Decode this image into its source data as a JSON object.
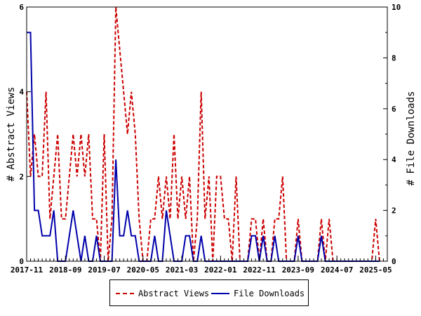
{
  "chart_data": {
    "type": "line",
    "ylabel_left": "# Abstract Views",
    "ylabel_right": "# File Downloads",
    "ylim_left": [
      0,
      6
    ],
    "ylim_right": [
      0,
      10
    ],
    "yticks_left": [
      "0",
      "2",
      "4",
      "6"
    ],
    "yticks_right": [
      "0",
      "2",
      "4",
      "6",
      "8",
      "10"
    ],
    "xlim_months": [
      "2017-11",
      "2025-08"
    ],
    "xtick_labels": [
      "2017-11",
      "2018-09",
      "2019-07",
      "2020-05",
      "2021-03",
      "2022-01",
      "2022-11",
      "2023-09",
      "2024-07",
      "2025-05"
    ],
    "grid": false,
    "legend_position": "bottom",
    "series": [
      {
        "name": "Abstract Views",
        "axis": "left",
        "color": "#cc0000",
        "style": "dashed",
        "points": [
          [
            "2017-11",
            4
          ],
          [
            "2017-12",
            2
          ],
          [
            "2018-01",
            3
          ],
          [
            "2018-02",
            2
          ],
          [
            "2018-03",
            2
          ],
          [
            "2018-04",
            4
          ],
          [
            "2018-05",
            1
          ],
          [
            "2018-06",
            2
          ],
          [
            "2018-07",
            3
          ],
          [
            "2018-08",
            1
          ],
          [
            "2018-09",
            1
          ],
          [
            "2018-10",
            2
          ],
          [
            "2018-11",
            3
          ],
          [
            "2018-12",
            2
          ],
          [
            "2019-01",
            3
          ],
          [
            "2019-02",
            2
          ],
          [
            "2019-03",
            3
          ],
          [
            "2019-04",
            1
          ],
          [
            "2019-05",
            1
          ],
          [
            "2019-06",
            0
          ],
          [
            "2019-07",
            3
          ],
          [
            "2019-08",
            0
          ],
          [
            "2019-09",
            1
          ],
          [
            "2019-10",
            6
          ],
          [
            "2019-11",
            5
          ],
          [
            "2019-12",
            4
          ],
          [
            "2020-01",
            3
          ],
          [
            "2020-02",
            4
          ],
          [
            "2020-03",
            3
          ],
          [
            "2020-04",
            1
          ],
          [
            "2020-05",
            0
          ],
          [
            "2020-06",
            0
          ],
          [
            "2020-07",
            1
          ],
          [
            "2020-08",
            1
          ],
          [
            "2020-09",
            2
          ],
          [
            "2020-10",
            1
          ],
          [
            "2020-11",
            2
          ],
          [
            "2020-12",
            1
          ],
          [
            "2021-01",
            3
          ],
          [
            "2021-02",
            1
          ],
          [
            "2021-03",
            2
          ],
          [
            "2021-04",
            1
          ],
          [
            "2021-05",
            2
          ],
          [
            "2021-06",
            0
          ],
          [
            "2021-07",
            1
          ],
          [
            "2021-08",
            4
          ],
          [
            "2021-09",
            1
          ],
          [
            "2021-10",
            2
          ],
          [
            "2021-11",
            0
          ],
          [
            "2021-12",
            2
          ],
          [
            "2022-01",
            2
          ],
          [
            "2022-02",
            1
          ],
          [
            "2022-03",
            1
          ],
          [
            "2022-04",
            0
          ],
          [
            "2022-05",
            2
          ],
          [
            "2022-06",
            0
          ],
          [
            "2022-07",
            0
          ],
          [
            "2022-08",
            0
          ],
          [
            "2022-09",
            1
          ],
          [
            "2022-10",
            1
          ],
          [
            "2022-11",
            0
          ],
          [
            "2022-12",
            1
          ],
          [
            "2023-01",
            0
          ],
          [
            "2023-02",
            0
          ],
          [
            "2023-03",
            1
          ],
          [
            "2023-04",
            1
          ],
          [
            "2023-05",
            2
          ],
          [
            "2023-06",
            0
          ],
          [
            "2023-07",
            0
          ],
          [
            "2023-08",
            0
          ],
          [
            "2023-09",
            1
          ],
          [
            "2023-10",
            0
          ],
          [
            "2023-11",
            0
          ],
          [
            "2023-12",
            0
          ],
          [
            "2024-01",
            0
          ],
          [
            "2024-02",
            0
          ],
          [
            "2024-03",
            1
          ],
          [
            "2024-04",
            0
          ],
          [
            "2024-05",
            1
          ],
          [
            "2024-06",
            0
          ],
          [
            "2024-07",
            0
          ],
          [
            "2024-08",
            0
          ],
          [
            "2024-09",
            0
          ],
          [
            "2024-10",
            0
          ],
          [
            "2024-11",
            0
          ],
          [
            "2024-12",
            0
          ],
          [
            "2025-01",
            0
          ],
          [
            "2025-02",
            0
          ],
          [
            "2025-03",
            0
          ],
          [
            "2025-04",
            0
          ],
          [
            "2025-05",
            1
          ],
          [
            "2025-06",
            0
          ]
        ]
      },
      {
        "name": "File Downloads",
        "axis": "right",
        "color": "#0000aa",
        "style": "solid",
        "points": [
          [
            "2017-11",
            9
          ],
          [
            "2017-12",
            9
          ],
          [
            "2018-01",
            2
          ],
          [
            "2018-02",
            2
          ],
          [
            "2018-03",
            1
          ],
          [
            "2018-04",
            1
          ],
          [
            "2018-05",
            1
          ],
          [
            "2018-06",
            2
          ],
          [
            "2018-07",
            0
          ],
          [
            "2018-08",
            0
          ],
          [
            "2018-09",
            0
          ],
          [
            "2018-10",
            1
          ],
          [
            "2018-11",
            2
          ],
          [
            "2018-12",
            1
          ],
          [
            "2019-01",
            0
          ],
          [
            "2019-02",
            1
          ],
          [
            "2019-03",
            0
          ],
          [
            "2019-04",
            0
          ],
          [
            "2019-05",
            1
          ],
          [
            "2019-06",
            0
          ],
          [
            "2019-07",
            0
          ],
          [
            "2019-08",
            0
          ],
          [
            "2019-09",
            0
          ],
          [
            "2019-10",
            4
          ],
          [
            "2019-11",
            1
          ],
          [
            "2019-12",
            1
          ],
          [
            "2020-01",
            2
          ],
          [
            "2020-02",
            1
          ],
          [
            "2020-03",
            1
          ],
          [
            "2020-04",
            0
          ],
          [
            "2020-05",
            0
          ],
          [
            "2020-06",
            0
          ],
          [
            "2020-07",
            0
          ],
          [
            "2020-08",
            1
          ],
          [
            "2020-09",
            0
          ],
          [
            "2020-10",
            0
          ],
          [
            "2020-11",
            2
          ],
          [
            "2020-12",
            1
          ],
          [
            "2021-01",
            0
          ],
          [
            "2021-02",
            0
          ],
          [
            "2021-03",
            0
          ],
          [
            "2021-04",
            1
          ],
          [
            "2021-05",
            1
          ],
          [
            "2021-06",
            0
          ],
          [
            "2021-07",
            0
          ],
          [
            "2021-08",
            1
          ],
          [
            "2021-09",
            0
          ],
          [
            "2021-10",
            0
          ],
          [
            "2021-11",
            0
          ],
          [
            "2021-12",
            0
          ],
          [
            "2022-01",
            0
          ],
          [
            "2022-02",
            0
          ],
          [
            "2022-03",
            0
          ],
          [
            "2022-04",
            0
          ],
          [
            "2022-05",
            0
          ],
          [
            "2022-06",
            0
          ],
          [
            "2022-07",
            0
          ],
          [
            "2022-08",
            0
          ],
          [
            "2022-09",
            1
          ],
          [
            "2022-10",
            1
          ],
          [
            "2022-11",
            0
          ],
          [
            "2022-12",
            1
          ],
          [
            "2023-01",
            0
          ],
          [
            "2023-02",
            0
          ],
          [
            "2023-03",
            1
          ],
          [
            "2023-04",
            0
          ],
          [
            "2023-05",
            0
          ],
          [
            "2023-06",
            0
          ],
          [
            "2023-07",
            0
          ],
          [
            "2023-08",
            0
          ],
          [
            "2023-09",
            1
          ],
          [
            "2023-10",
            0
          ],
          [
            "2023-11",
            0
          ],
          [
            "2023-12",
            0
          ],
          [
            "2024-01",
            0
          ],
          [
            "2024-02",
            0
          ],
          [
            "2024-03",
            1
          ],
          [
            "2024-04",
            0
          ],
          [
            "2024-05",
            0
          ],
          [
            "2024-06",
            0
          ],
          [
            "2024-07",
            0
          ],
          [
            "2024-08",
            0
          ],
          [
            "2024-09",
            0
          ],
          [
            "2024-10",
            0
          ],
          [
            "2024-11",
            0
          ],
          [
            "2024-12",
            0
          ],
          [
            "2025-01",
            0
          ],
          [
            "2025-02",
            0
          ],
          [
            "2025-03",
            0
          ],
          [
            "2025-04",
            0
          ],
          [
            "2025-05",
            0
          ],
          [
            "2025-06",
            0
          ]
        ]
      }
    ]
  },
  "legend": {
    "items": [
      {
        "label": "Abstract Views"
      },
      {
        "label": "File Downloads"
      }
    ]
  }
}
